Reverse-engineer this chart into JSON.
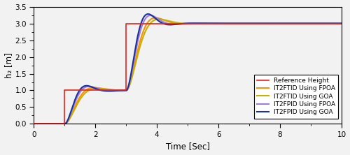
{
  "title": "",
  "xlabel": "Time [Sec]",
  "ylabel": "h₂ [m]",
  "xlim": [
    0,
    10
  ],
  "ylim": [
    0,
    3.5
  ],
  "xticks": [
    0,
    2,
    4,
    6,
    8,
    10
  ],
  "yticks": [
    0,
    0.5,
    1.0,
    1.5,
    2.0,
    2.5,
    3.0,
    3.5
  ],
  "legend": [
    {
      "label": "Reference Height",
      "color": "#e8231a",
      "lw": 1.2
    },
    {
      "label": "IT2FTID Using FPOA",
      "color": "#f5920a",
      "lw": 1.5
    },
    {
      "label": "IT2FTID Using GOA",
      "color": "#c8b000",
      "lw": 1.5
    },
    {
      "label": "IT2FPID Using FPOA",
      "color": "#9b7fd4",
      "lw": 1.5
    },
    {
      "label": "IT2FPID Using GOA",
      "color": "#1a2fa0",
      "lw": 1.5
    }
  ],
  "ref_steps": [
    [
      0,
      0
    ],
    [
      1,
      0
    ],
    [
      1,
      1
    ],
    [
      3,
      1
    ],
    [
      3,
      3
    ],
    [
      10,
      3
    ]
  ],
  "background_color": "#f2f2f2",
  "legend_fontsize": 6.5,
  "axis_fontsize": 8.5,
  "tick_fontsize": 7.5
}
